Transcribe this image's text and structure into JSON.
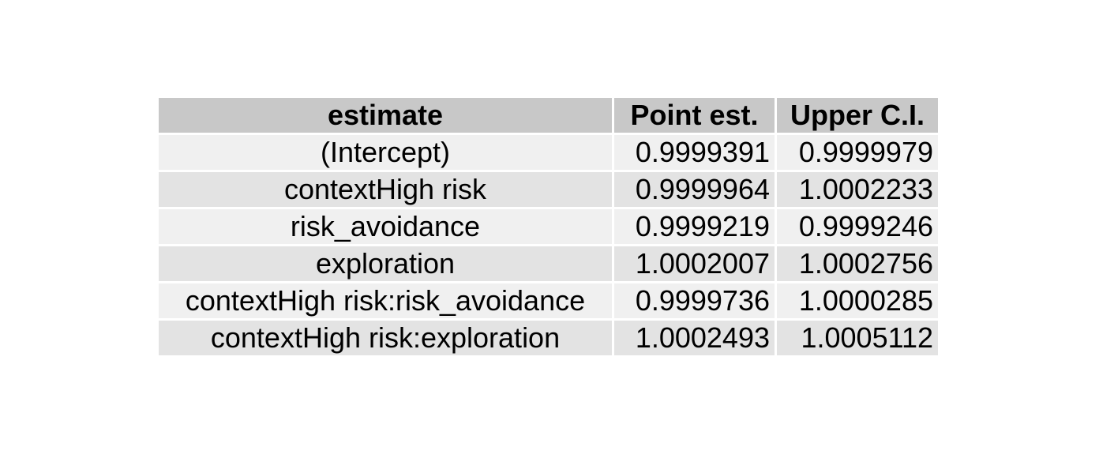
{
  "table": {
    "headers": [
      "estimate",
      "Point est.",
      "Upper C.I."
    ],
    "rows": [
      [
        "(Intercept)",
        "0.9999391",
        "0.9999979"
      ],
      [
        "contextHigh risk",
        "0.9999964",
        "1.0002233"
      ],
      [
        "risk_avoidance",
        "0.9999219",
        "0.9999246"
      ],
      [
        "exploration",
        "1.0002007",
        "1.0002756"
      ],
      [
        "contextHigh risk:risk_avoidance",
        "0.9999736",
        "1.0000285"
      ],
      [
        "contextHigh risk:exploration",
        "1.0002493",
        "1.0005112"
      ]
    ]
  },
  "colors": {
    "header_bg": "#c8c8c8",
    "row_odd_bg": "#f0f0f0",
    "row_even_bg": "#e3e3e3",
    "text": "#000000"
  }
}
